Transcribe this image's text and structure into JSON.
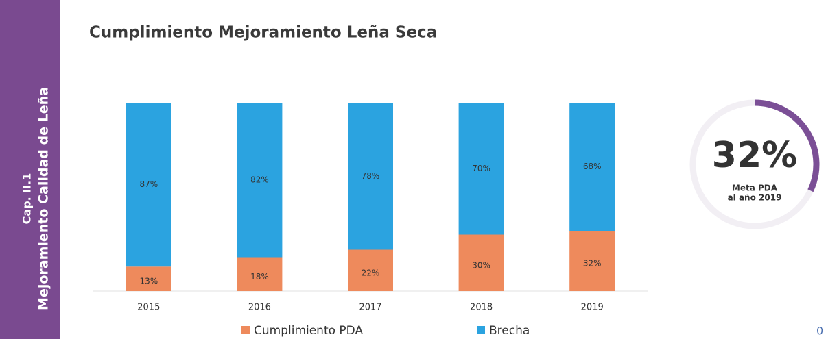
{
  "sidebar": {
    "chapter": "Cap. II.1",
    "title": "Mejoramiento Calidad de Leña"
  },
  "chart_data": {
    "type": "bar",
    "stacked": true,
    "title": "Cumplimiento Mejoramiento Leña Seca",
    "categories": [
      "2015",
      "2016",
      "2017",
      "2018",
      "2019"
    ],
    "series": [
      {
        "name": "Cumplimiento PDA",
        "color": "#ee8a5c",
        "values": [
          13,
          18,
          22,
          30,
          32
        ],
        "value_labels": [
          "13%",
          "18%",
          "22%",
          "30%",
          "32%"
        ]
      },
      {
        "name": "Brecha",
        "color": "#2ba3e0",
        "values": [
          87,
          82,
          78,
          70,
          68
        ],
        "value_labels": [
          "87%",
          "82%",
          "78%",
          "70%",
          "68%"
        ]
      }
    ],
    "ylim": [
      0,
      100
    ],
    "legend": "bottom"
  },
  "gauge": {
    "value": 32,
    "label": "32%",
    "caption": [
      "Meta PDA",
      "al año 2019"
    ],
    "color": "#7b4f96"
  },
  "page_number": "0"
}
